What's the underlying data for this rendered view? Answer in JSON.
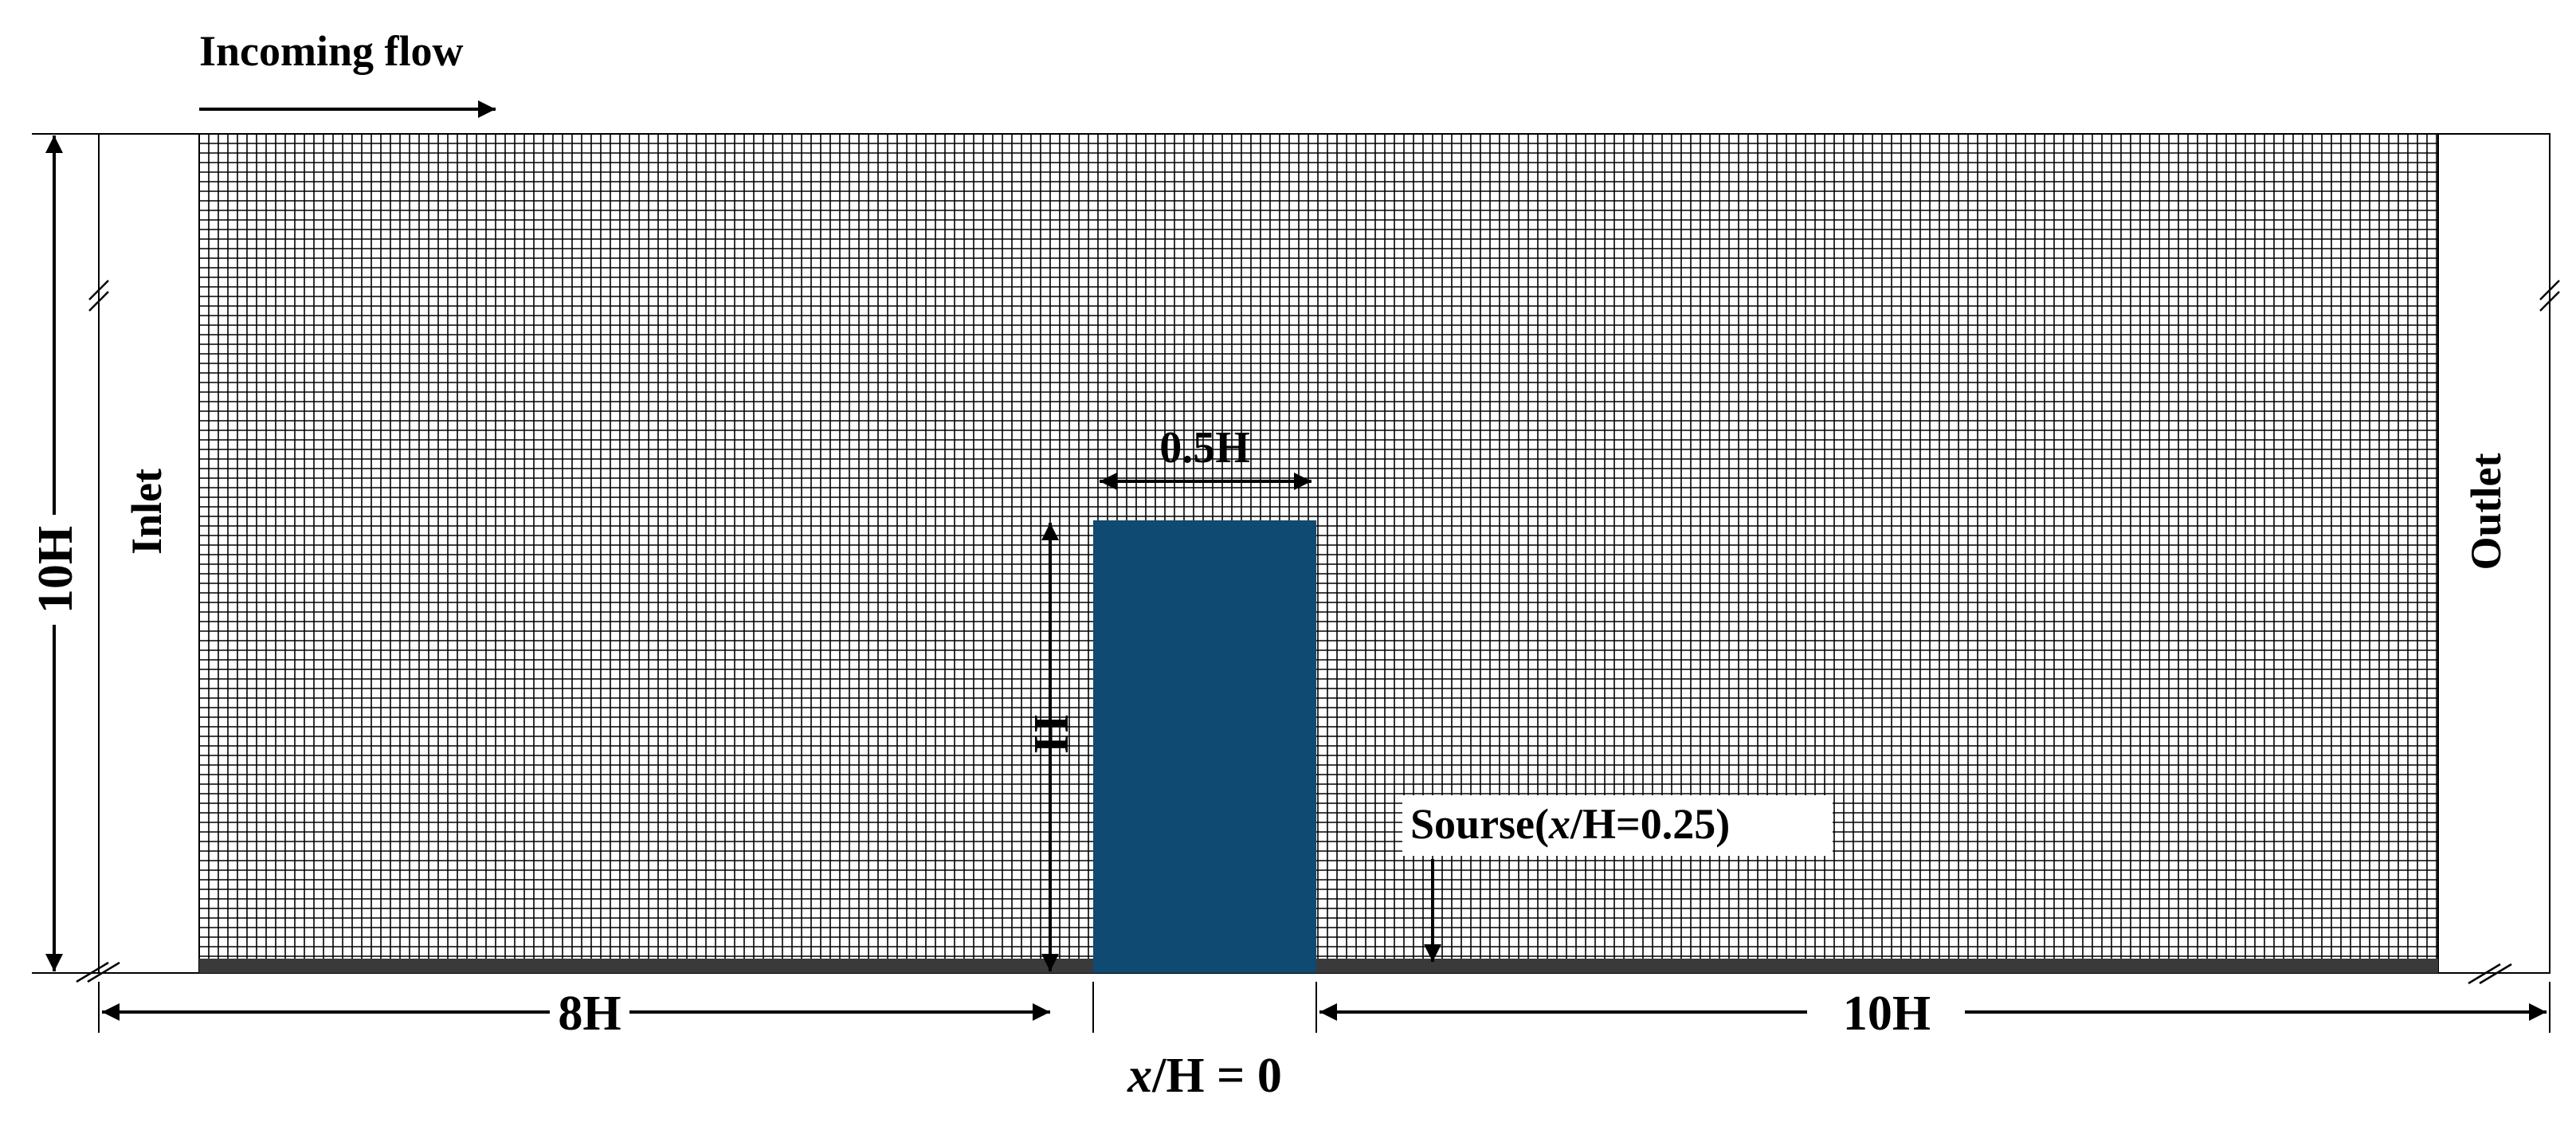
{
  "labels": {
    "incoming_flow": "Incoming flow",
    "inlet": "Inlet",
    "outlet": "Outlet",
    "height_10h": "10H",
    "building_height": "H",
    "building_width": "0.5H",
    "source_prefix": "Sourse(",
    "source_x": "x",
    "source_suffix": "/H=0.25)",
    "upstream_length": "8H",
    "downstream_length": "10H",
    "origin_x": "x",
    "origin_suffix": "/H = 0"
  },
  "colors": {
    "building": "#0f4a72",
    "mesh": "#000000",
    "background": "#ffffff"
  }
}
